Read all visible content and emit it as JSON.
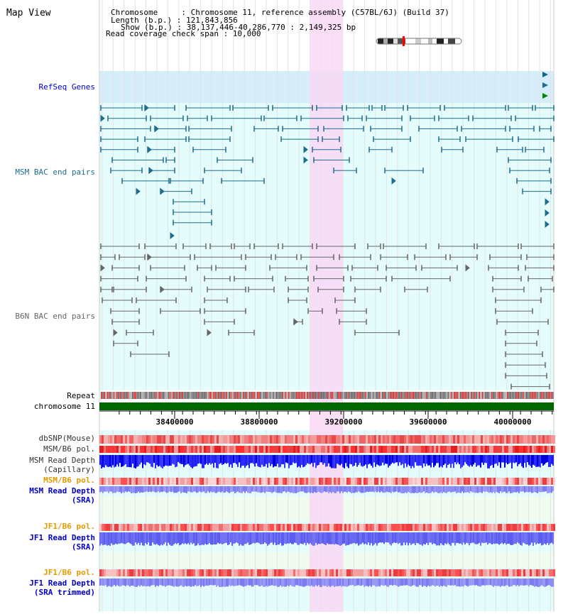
{
  "view": {
    "title": "Map View"
  },
  "info": {
    "chromosome_line": "Chromosome     : Chromosome 11, reference assembly (C57BL/6J) (Build 37)",
    "length_line": "Length (b.p.) : 121,843,856",
    "show_line": "Show (b.p.) : 38,137,446-40,286,770 : 2,149,325 bp",
    "coverage_line": "Read coverage check span : 10,000"
  },
  "tracks": {
    "refseq": "RefSeq Genes",
    "msm_bac": "MSM BAC end pairs",
    "b6n_bac": "B6N BAC end pairs",
    "repeat": "Repeat",
    "chromosome": "chromosome 11",
    "dbsnp": "dbSNP(Mouse)",
    "msm_b6_pol": "MSM/B6 pol.",
    "msm_depth_cap_1": "MSM Read Depth",
    "msm_depth_cap_2": "(Capillary)",
    "msm_b6_pol_2": "MSM/B6 pol.",
    "msm_depth_sra_1": "MSM Read Depth",
    "msm_depth_sra_2": "(SRA)",
    "jf1_b6_pol": "JF1/B6 pol.",
    "jf1_depth_sra_1": "JF1 Read Depth",
    "jf1_depth_sra_2": "(SRA)",
    "jf1_b6_pol_2": "JF1/B6 pol.",
    "jf1_depth_trim_1": "JF1 Read Depth",
    "jf1_depth_trim_2": "(SRA trimmed)"
  },
  "axis": {
    "ticks": [
      {
        "value": 38400000,
        "label": "38400000"
      },
      {
        "value": 38800000,
        "label": "38800000"
      },
      {
        "value": 39200000,
        "label": "39200000"
      },
      {
        "value": 39600000,
        "label": "39600000"
      },
      {
        "value": 40000000,
        "label": "40000000"
      }
    ]
  },
  "colors": {
    "refseq_band": "#d6eefa",
    "bac_band": "#e4fcfc",
    "depth_band": "#f0fcf0",
    "highlight": "#f8d8f4",
    "msm_line": "#1f6c8c",
    "b6n_line": "#666666",
    "chromosome": "#006600",
    "track_blue": "#0000cc",
    "track_orange": "#e39b00",
    "track_dark": "#333333"
  }
}
